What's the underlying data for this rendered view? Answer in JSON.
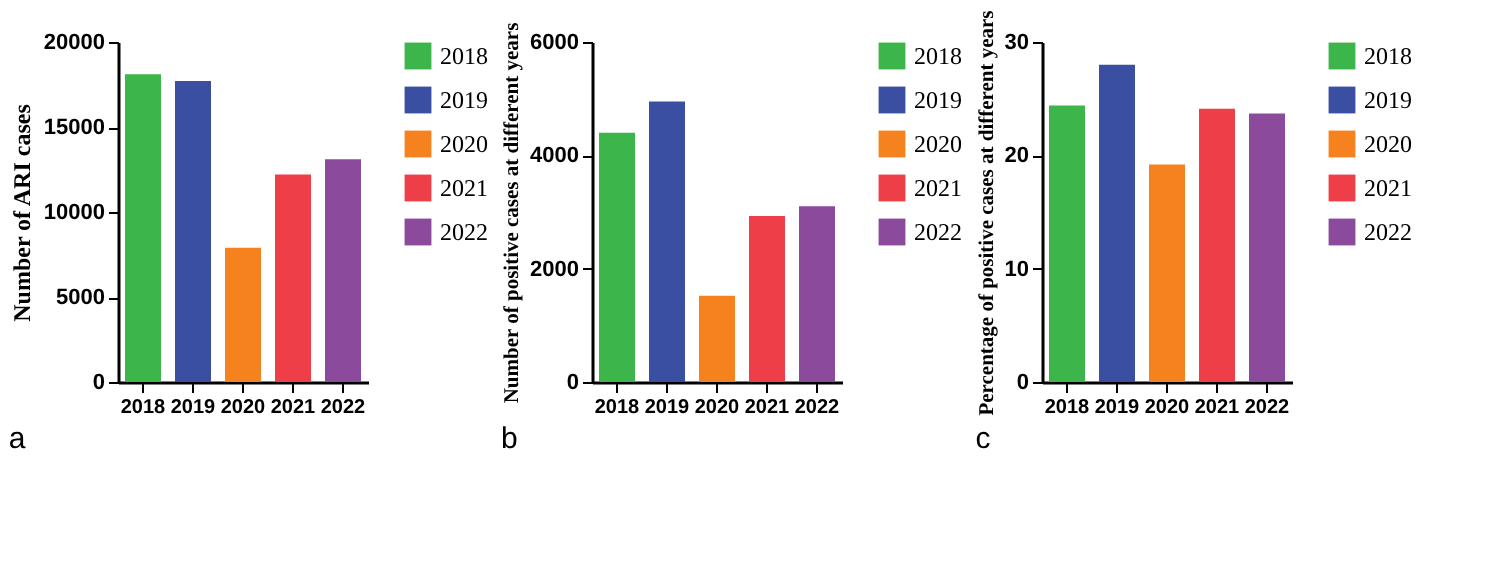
{
  "chart_data": [
    {
      "type": "bar",
      "categories": [
        "2018",
        "2019",
        "2020",
        "2021",
        "2022"
      ],
      "ylabel": "Number of ARI cases",
      "ylim": [
        0,
        20000
      ],
      "yticks": [
        0,
        5000,
        10000,
        15000,
        20000
      ],
      "grid": false,
      "legend": "top right",
      "annotations": [
        "a"
      ],
      "series": [
        {
          "name": "2018",
          "color": "#3cb54a",
          "values": [
            18100,
            null,
            null,
            null,
            null
          ]
        },
        {
          "name": "2019",
          "color": "#3a4fa2",
          "values": [
            null,
            17700,
            null,
            null,
            null
          ]
        },
        {
          "name": "2020",
          "color": "#f5821f",
          "values": [
            null,
            null,
            7900,
            null,
            null
          ]
        },
        {
          "name": "2021",
          "color": "#ee3f48",
          "values": [
            null,
            null,
            null,
            12200,
            null
          ]
        },
        {
          "name": "2022",
          "color": "#8c4a9d",
          "values": [
            null,
            null,
            null,
            null,
            13100
          ]
        }
      ]
    },
    {
      "type": "bar",
      "categories": [
        "2018",
        "2019",
        "2020",
        "2021",
        "2022"
      ],
      "ylabel": "Number of positive cases at different years",
      "ylim": [
        0,
        6000
      ],
      "yticks": [
        0,
        2000,
        4000,
        6000
      ],
      "grid": false,
      "legend": "top right",
      "annotations": [
        "b"
      ],
      "series": [
        {
          "name": "2018",
          "color": "#3cb54a",
          "values": [
            4400,
            null,
            null,
            null,
            null
          ]
        },
        {
          "name": "2019",
          "color": "#3a4fa2",
          "values": [
            null,
            4950,
            null,
            null,
            null
          ]
        },
        {
          "name": "2020",
          "color": "#f5821f",
          "values": [
            null,
            null,
            1520,
            null,
            null
          ]
        },
        {
          "name": "2021",
          "color": "#ee3f48",
          "values": [
            null,
            null,
            null,
            2930,
            null
          ]
        },
        {
          "name": "2022",
          "color": "#8c4a9d",
          "values": [
            null,
            null,
            null,
            null,
            3100
          ]
        }
      ]
    },
    {
      "type": "bar",
      "categories": [
        "2018",
        "2019",
        "2020",
        "2021",
        "2022"
      ],
      "ylabel": "Percentage of positive cases at different years",
      "ylim": [
        0,
        30
      ],
      "yticks": [
        0,
        10,
        20,
        30
      ],
      "grid": false,
      "legend": "top right",
      "annotations": [
        "c"
      ],
      "series": [
        {
          "name": "2018",
          "color": "#3cb54a",
          "values": [
            24.4,
            null,
            null,
            null,
            null
          ]
        },
        {
          "name": "2019",
          "color": "#3a4fa2",
          "values": [
            null,
            28.0,
            null,
            null,
            null
          ]
        },
        {
          "name": "2020",
          "color": "#f5821f",
          "values": [
            null,
            null,
            19.2,
            null,
            null
          ]
        },
        {
          "name": "2021",
          "color": "#ee3f48",
          "values": [
            null,
            null,
            null,
            24.1,
            null
          ]
        },
        {
          "name": "2022",
          "color": "#8c4a9d",
          "values": [
            null,
            null,
            null,
            null,
            23.7
          ]
        }
      ]
    }
  ]
}
